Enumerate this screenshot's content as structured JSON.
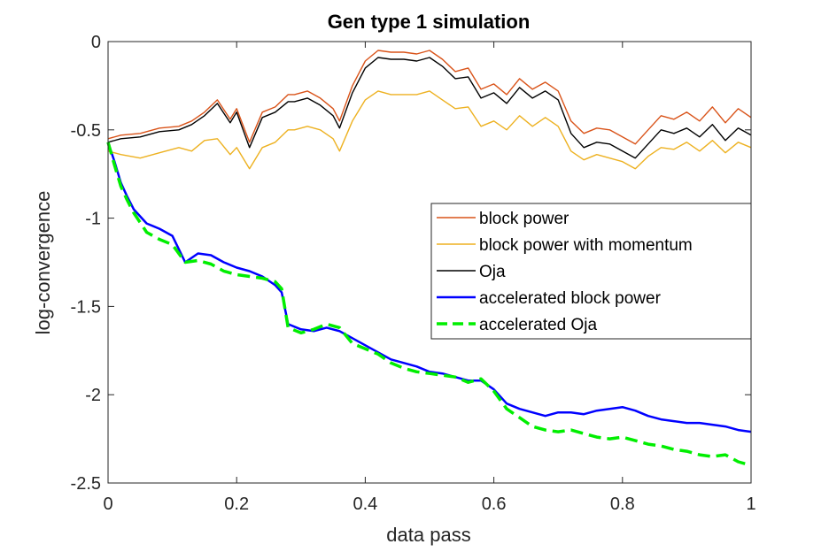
{
  "chart_data": {
    "type": "line",
    "title": "Gen type 1 simulation",
    "xlabel": "data pass",
    "ylabel": "log-convergence",
    "xlim": [
      0,
      1
    ],
    "ylim": [
      -2.5,
      0
    ],
    "xticks": [
      0,
      0.2,
      0.4,
      0.6,
      0.8,
      1
    ],
    "xtick_labels": [
      "0",
      "0.2",
      "0.4",
      "0.6",
      "0.8",
      "1"
    ],
    "yticks": [
      0,
      -0.5,
      -1,
      -1.5,
      -2,
      -2.5
    ],
    "ytick_labels": [
      "0",
      "-0.5",
      "-1",
      "-1.5",
      "-2",
      "-2.5"
    ],
    "legend_position": "right",
    "series": [
      {
        "name": "block power",
        "color": "#d95319",
        "style": "solid",
        "x": [
          0,
          0.02,
          0.05,
          0.08,
          0.11,
          0.13,
          0.15,
          0.17,
          0.19,
          0.2,
          0.22,
          0.24,
          0.26,
          0.28,
          0.29,
          0.31,
          0.33,
          0.35,
          0.36,
          0.38,
          0.4,
          0.42,
          0.44,
          0.46,
          0.48,
          0.5,
          0.52,
          0.54,
          0.56,
          0.58,
          0.6,
          0.62,
          0.64,
          0.66,
          0.68,
          0.7,
          0.72,
          0.74,
          0.76,
          0.78,
          0.8,
          0.82,
          0.84,
          0.86,
          0.88,
          0.9,
          0.92,
          0.94,
          0.96,
          0.98,
          1
        ],
        "y": [
          -0.55,
          -0.53,
          -0.52,
          -0.49,
          -0.48,
          -0.45,
          -0.4,
          -0.33,
          -0.44,
          -0.38,
          -0.57,
          -0.4,
          -0.37,
          -0.3,
          -0.3,
          -0.28,
          -0.32,
          -0.38,
          -0.45,
          -0.25,
          -0.11,
          -0.05,
          -0.06,
          -0.06,
          -0.07,
          -0.05,
          -0.1,
          -0.17,
          -0.15,
          -0.27,
          -0.24,
          -0.3,
          -0.21,
          -0.27,
          -0.23,
          -0.28,
          -0.45,
          -0.52,
          -0.49,
          -0.5,
          -0.54,
          -0.58,
          -0.5,
          -0.42,
          -0.44,
          -0.4,
          -0.45,
          -0.37,
          -0.46,
          -0.38,
          -0.43
        ]
      },
      {
        "name": "block power with momentum",
        "color": "#edb120",
        "style": "solid",
        "x": [
          0,
          0.02,
          0.05,
          0.08,
          0.11,
          0.13,
          0.15,
          0.17,
          0.19,
          0.2,
          0.22,
          0.24,
          0.26,
          0.28,
          0.29,
          0.31,
          0.33,
          0.35,
          0.36,
          0.38,
          0.4,
          0.42,
          0.44,
          0.46,
          0.48,
          0.5,
          0.52,
          0.54,
          0.56,
          0.58,
          0.6,
          0.62,
          0.64,
          0.66,
          0.68,
          0.7,
          0.72,
          0.74,
          0.76,
          0.78,
          0.8,
          0.82,
          0.84,
          0.86,
          0.88,
          0.9,
          0.92,
          0.94,
          0.96,
          0.98,
          1
        ],
        "y": [
          -0.62,
          -0.64,
          -0.66,
          -0.63,
          -0.6,
          -0.62,
          -0.56,
          -0.55,
          -0.64,
          -0.6,
          -0.72,
          -0.6,
          -0.57,
          -0.5,
          -0.5,
          -0.48,
          -0.5,
          -0.55,
          -0.62,
          -0.45,
          -0.33,
          -0.28,
          -0.3,
          -0.3,
          -0.3,
          -0.28,
          -0.33,
          -0.38,
          -0.37,
          -0.48,
          -0.45,
          -0.5,
          -0.42,
          -0.48,
          -0.43,
          -0.48,
          -0.62,
          -0.67,
          -0.64,
          -0.66,
          -0.68,
          -0.72,
          -0.65,
          -0.6,
          -0.61,
          -0.57,
          -0.62,
          -0.56,
          -0.63,
          -0.57,
          -0.6
        ]
      },
      {
        "name": "Oja",
        "color": "#000000",
        "style": "solid",
        "x": [
          0,
          0.02,
          0.05,
          0.08,
          0.11,
          0.13,
          0.15,
          0.17,
          0.19,
          0.2,
          0.22,
          0.24,
          0.26,
          0.28,
          0.29,
          0.31,
          0.33,
          0.35,
          0.36,
          0.38,
          0.4,
          0.42,
          0.44,
          0.46,
          0.48,
          0.5,
          0.52,
          0.54,
          0.56,
          0.58,
          0.6,
          0.62,
          0.64,
          0.66,
          0.68,
          0.7,
          0.72,
          0.74,
          0.76,
          0.78,
          0.8,
          0.82,
          0.84,
          0.86,
          0.88,
          0.9,
          0.92,
          0.94,
          0.96,
          0.98,
          1
        ],
        "y": [
          -0.57,
          -0.55,
          -0.54,
          -0.51,
          -0.5,
          -0.47,
          -0.42,
          -0.35,
          -0.46,
          -0.4,
          -0.6,
          -0.43,
          -0.4,
          -0.34,
          -0.34,
          -0.32,
          -0.36,
          -0.42,
          -0.49,
          -0.29,
          -0.15,
          -0.09,
          -0.1,
          -0.1,
          -0.11,
          -0.09,
          -0.14,
          -0.21,
          -0.2,
          -0.32,
          -0.29,
          -0.35,
          -0.26,
          -0.32,
          -0.28,
          -0.33,
          -0.52,
          -0.6,
          -0.57,
          -0.58,
          -0.62,
          -0.66,
          -0.58,
          -0.5,
          -0.52,
          -0.49,
          -0.54,
          -0.47,
          -0.56,
          -0.49,
          -0.53
        ]
      },
      {
        "name": "accelerated block power",
        "color": "#0000ff",
        "style": "solid",
        "x": [
          0,
          0.01,
          0.02,
          0.03,
          0.04,
          0.06,
          0.08,
          0.1,
          0.12,
          0.14,
          0.16,
          0.18,
          0.2,
          0.22,
          0.24,
          0.26,
          0.27,
          0.28,
          0.3,
          0.32,
          0.34,
          0.36,
          0.38,
          0.4,
          0.42,
          0.44,
          0.46,
          0.48,
          0.5,
          0.52,
          0.54,
          0.56,
          0.58,
          0.6,
          0.62,
          0.64,
          0.66,
          0.68,
          0.7,
          0.72,
          0.74,
          0.76,
          0.78,
          0.8,
          0.82,
          0.84,
          0.86,
          0.88,
          0.9,
          0.92,
          0.94,
          0.96,
          0.98,
          1
        ],
        "y": [
          -0.57,
          -0.68,
          -0.8,
          -0.88,
          -0.95,
          -1.03,
          -1.06,
          -1.1,
          -1.25,
          -1.2,
          -1.21,
          -1.25,
          -1.28,
          -1.3,
          -1.33,
          -1.38,
          -1.42,
          -1.6,
          -1.63,
          -1.64,
          -1.62,
          -1.64,
          -1.68,
          -1.72,
          -1.76,
          -1.8,
          -1.82,
          -1.84,
          -1.87,
          -1.88,
          -1.9,
          -1.92,
          -1.92,
          -1.97,
          -2.05,
          -2.08,
          -2.1,
          -2.12,
          -2.1,
          -2.1,
          -2.11,
          -2.09,
          -2.08,
          -2.07,
          -2.09,
          -2.12,
          -2.14,
          -2.15,
          -2.16,
          -2.16,
          -2.17,
          -2.18,
          -2.2,
          -2.21
        ]
      },
      {
        "name": "accelerated Oja",
        "color": "#00ee00",
        "style": "dashed",
        "x": [
          0,
          0.01,
          0.02,
          0.03,
          0.04,
          0.06,
          0.08,
          0.1,
          0.12,
          0.14,
          0.16,
          0.18,
          0.2,
          0.22,
          0.24,
          0.26,
          0.27,
          0.28,
          0.3,
          0.32,
          0.34,
          0.36,
          0.38,
          0.4,
          0.42,
          0.44,
          0.46,
          0.48,
          0.5,
          0.52,
          0.54,
          0.56,
          0.58,
          0.6,
          0.62,
          0.64,
          0.66,
          0.68,
          0.7,
          0.72,
          0.74,
          0.76,
          0.78,
          0.8,
          0.82,
          0.84,
          0.86,
          0.88,
          0.9,
          0.92,
          0.94,
          0.96,
          0.98,
          1
        ],
        "y": [
          -0.57,
          -0.7,
          -0.82,
          -0.9,
          -0.97,
          -1.08,
          -1.12,
          -1.15,
          -1.25,
          -1.24,
          -1.26,
          -1.3,
          -1.32,
          -1.33,
          -1.34,
          -1.36,
          -1.4,
          -1.62,
          -1.65,
          -1.63,
          -1.6,
          -1.62,
          -1.71,
          -1.74,
          -1.77,
          -1.82,
          -1.85,
          -1.87,
          -1.88,
          -1.89,
          -1.9,
          -1.93,
          -1.91,
          -1.98,
          -2.08,
          -2.13,
          -2.18,
          -2.2,
          -2.21,
          -2.2,
          -2.22,
          -2.24,
          -2.25,
          -2.24,
          -2.26,
          -2.28,
          -2.29,
          -2.31,
          -2.32,
          -2.34,
          -2.35,
          -2.34,
          -2.38,
          -2.4
        ]
      }
    ]
  }
}
